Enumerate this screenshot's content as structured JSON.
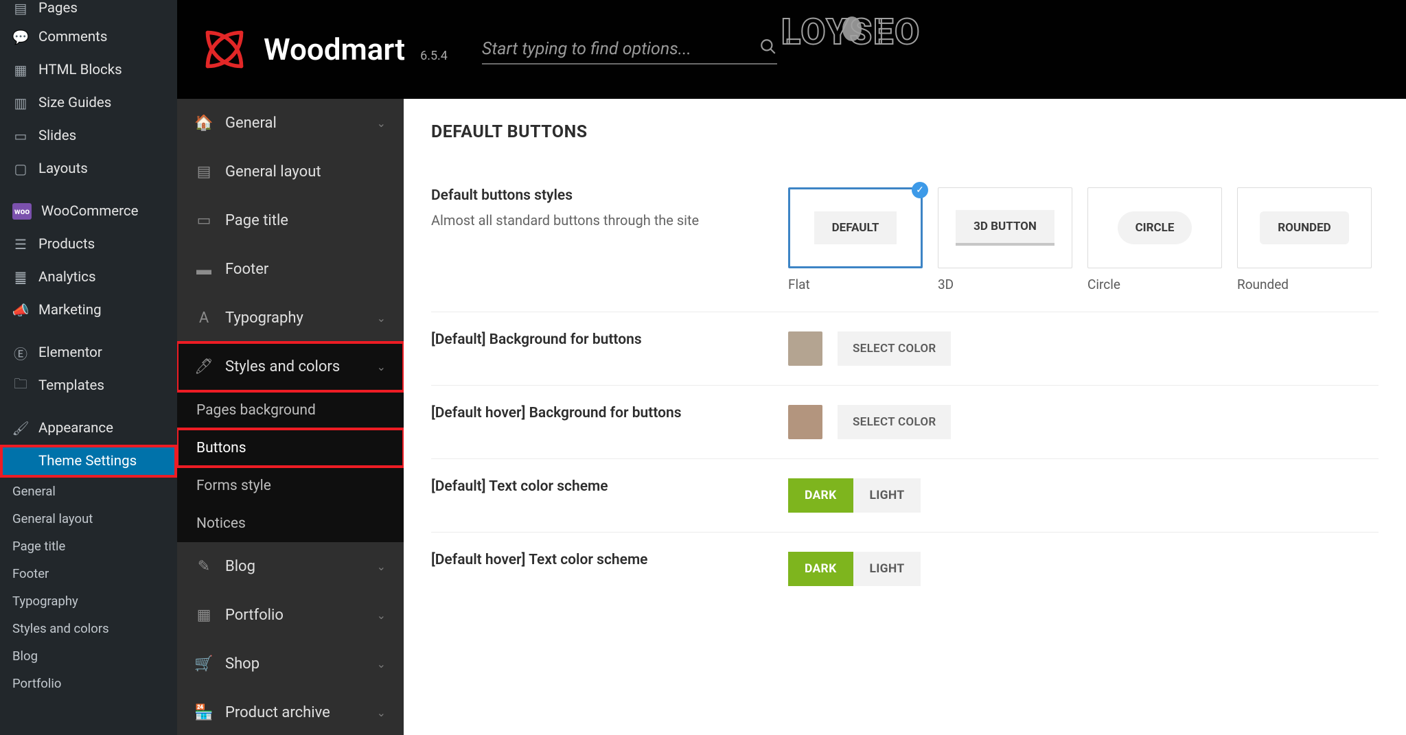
{
  "colors": {
    "accent_highlight": "#ed1c24",
    "wp_active": "#0072aa",
    "selected_card_border": "#3d84c5",
    "badge": "#3d9ae8",
    "seg_on": "#7eb51e",
    "swatch1": "#b4a491",
    "swatch2": "#b3957e"
  },
  "wp_sidebar": {
    "items": [
      {
        "icon": "page",
        "label": "Pages"
      },
      {
        "icon": "comment",
        "label": "Comments"
      },
      {
        "icon": "blocks",
        "label": "HTML Blocks"
      },
      {
        "icon": "grid",
        "label": "Size Guides"
      },
      {
        "icon": "slides",
        "label": "Slides"
      },
      {
        "icon": "layouts",
        "label": "Layouts"
      }
    ],
    "items2": [
      {
        "icon": "woo",
        "label": "WooCommerce"
      },
      {
        "icon": "products",
        "label": "Products"
      },
      {
        "icon": "analytics",
        "label": "Analytics"
      },
      {
        "icon": "marketing",
        "label": "Marketing"
      }
    ],
    "items3": [
      {
        "icon": "elementor",
        "label": "Elementor"
      },
      {
        "icon": "templates",
        "label": "Templates"
      }
    ],
    "items4": [
      {
        "icon": "appearance",
        "label": "Appearance"
      },
      {
        "icon": "theme",
        "label": "Theme Settings",
        "active": true,
        "highlight": true
      }
    ],
    "subs": [
      "General",
      "General layout",
      "Page title",
      "Footer",
      "Typography",
      "Styles and colors",
      "Blog",
      "Portfolio"
    ]
  },
  "header": {
    "brand": "Woodmart",
    "version": "6.5.4",
    "search_placeholder": "Start typing to find options...",
    "watermark": "LOYSEO"
  },
  "theme_nav": {
    "items": [
      {
        "icon": "home",
        "label": "General",
        "chev": true
      },
      {
        "icon": "layout",
        "label": "General layout"
      },
      {
        "icon": "title",
        "label": "Page title"
      },
      {
        "icon": "footer",
        "label": "Footer"
      },
      {
        "icon": "typo",
        "label": "Typography",
        "chev": true
      },
      {
        "icon": "brush",
        "label": "Styles and colors",
        "chev": true,
        "dark": true,
        "highlight": true
      }
    ],
    "subs": [
      {
        "label": "Pages background"
      },
      {
        "label": "Buttons",
        "sel": true,
        "highlight": true
      },
      {
        "label": "Forms style"
      },
      {
        "label": "Notices"
      }
    ],
    "items2": [
      {
        "icon": "blog",
        "label": "Blog",
        "chev": true
      },
      {
        "icon": "portfolio",
        "label": "Portfolio",
        "chev": true
      },
      {
        "icon": "shop",
        "label": "Shop",
        "chev": true
      },
      {
        "icon": "archive",
        "label": "Product archive",
        "chev": true
      }
    ]
  },
  "panel": {
    "title": "DEFAULT BUTTONS",
    "row1": {
      "title": "Default buttons styles",
      "desc": "Almost all standard buttons through the site",
      "options": [
        {
          "btn": "DEFAULT",
          "style": "flat",
          "label": "Flat",
          "selected": true
        },
        {
          "btn": "3D BUTTON",
          "style": "threeD",
          "label": "3D"
        },
        {
          "btn": "CIRCLE",
          "style": "circle",
          "label": "Circle"
        },
        {
          "btn": "ROUNDED",
          "style": "rounded",
          "label": "Rounded"
        }
      ]
    },
    "row2": {
      "title": "[Default] Background for buttons",
      "btn": "SELECT COLOR",
      "swatch": "#b4a491"
    },
    "row3": {
      "title": "[Default hover] Background for buttons",
      "btn": "SELECT COLOR",
      "swatch": "#b3957e"
    },
    "row4": {
      "title": "[Default] Text color scheme",
      "on": "DARK",
      "off": "LIGHT"
    },
    "row5": {
      "title": "[Default hover] Text color scheme",
      "on": "DARK",
      "off": "LIGHT"
    }
  }
}
